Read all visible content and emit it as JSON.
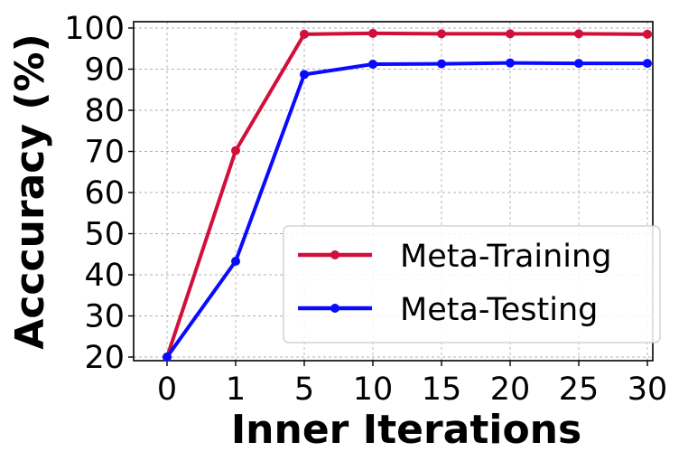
{
  "chart_data": {
    "type": "line",
    "xlabel": "Inner Iterations",
    "ylabel": "Acccuracy (%)",
    "categories": [
      "0",
      "1",
      "5",
      "10",
      "15",
      "20",
      "25",
      "30"
    ],
    "ylim": [
      20,
      100
    ],
    "yticks": [
      20,
      30,
      40,
      50,
      60,
      70,
      80,
      90,
      100
    ],
    "grid": true,
    "legend_position": "lower right",
    "series": [
      {
        "name": "Meta-Training",
        "color": "#d0103a",
        "values": [
          20,
          70.2,
          98.5,
          98.7,
          98.6,
          98.6,
          98.6,
          98.5
        ]
      },
      {
        "name": "Meta-Testing",
        "color": "#0a0aff",
        "values": [
          20,
          43.3,
          88.7,
          91.2,
          91.3,
          91.5,
          91.4,
          91.4
        ]
      }
    ]
  }
}
